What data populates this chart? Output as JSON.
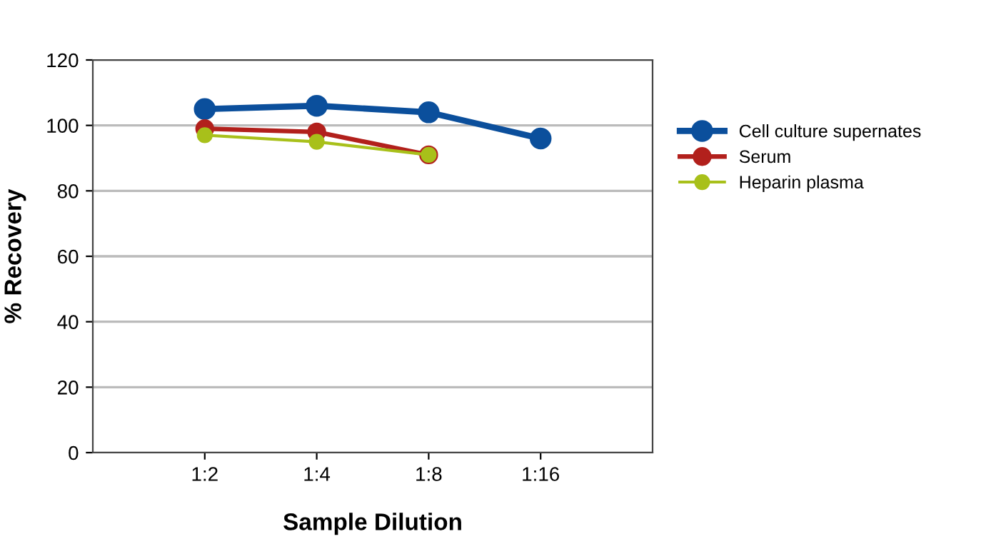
{
  "chart_data": {
    "type": "line",
    "xlabel": "Sample Dilution",
    "ylabel": "% Recovery",
    "categories": [
      "1:2",
      "1:4",
      "1:8",
      "1:16"
    ],
    "series": [
      {
        "name": "Cell culture supernates",
        "color": "#0b4f9c",
        "values": [
          105,
          106,
          104,
          96
        ]
      },
      {
        "name": "Serum",
        "color": "#b2201c",
        "values": [
          99,
          98,
          91,
          null
        ]
      },
      {
        "name": "Heparin plasma",
        "color": "#a8c01a",
        "values": [
          97,
          95,
          91,
          null
        ]
      }
    ],
    "ylim": [
      0,
      120
    ],
    "yticks": [
      0,
      20,
      40,
      60,
      80,
      100,
      120
    ],
    "grid": "y",
    "legend": "right",
    "marker": "circle",
    "line_style": "solid"
  }
}
